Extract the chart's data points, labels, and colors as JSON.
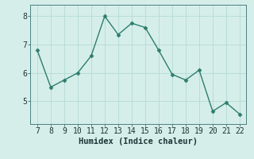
{
  "x": [
    7,
    8,
    9,
    10,
    11,
    12,
    13,
    14,
    15,
    16,
    17,
    18,
    19,
    20,
    21,
    22
  ],
  "y": [
    6.8,
    5.5,
    5.75,
    6.0,
    6.6,
    8.0,
    7.35,
    7.75,
    7.6,
    6.8,
    5.95,
    5.75,
    6.1,
    4.65,
    4.95,
    4.55
  ],
  "line_color": "#2d7d6e",
  "marker": "D",
  "marker_size": 2.5,
  "background_color": "#d6eeea",
  "grid_color": "#b8ddd8",
  "xlabel": "Humidex (Indice chaleur)",
  "xlabel_fontsize": 7.5,
  "tick_fontsize": 7,
  "xlim": [
    6.5,
    22.5
  ],
  "ylim": [
    4.2,
    8.4
  ],
  "yticks": [
    5,
    6,
    7,
    8
  ],
  "xticks": [
    7,
    8,
    9,
    10,
    11,
    12,
    13,
    14,
    15,
    16,
    17,
    18,
    19,
    20,
    21,
    22
  ]
}
